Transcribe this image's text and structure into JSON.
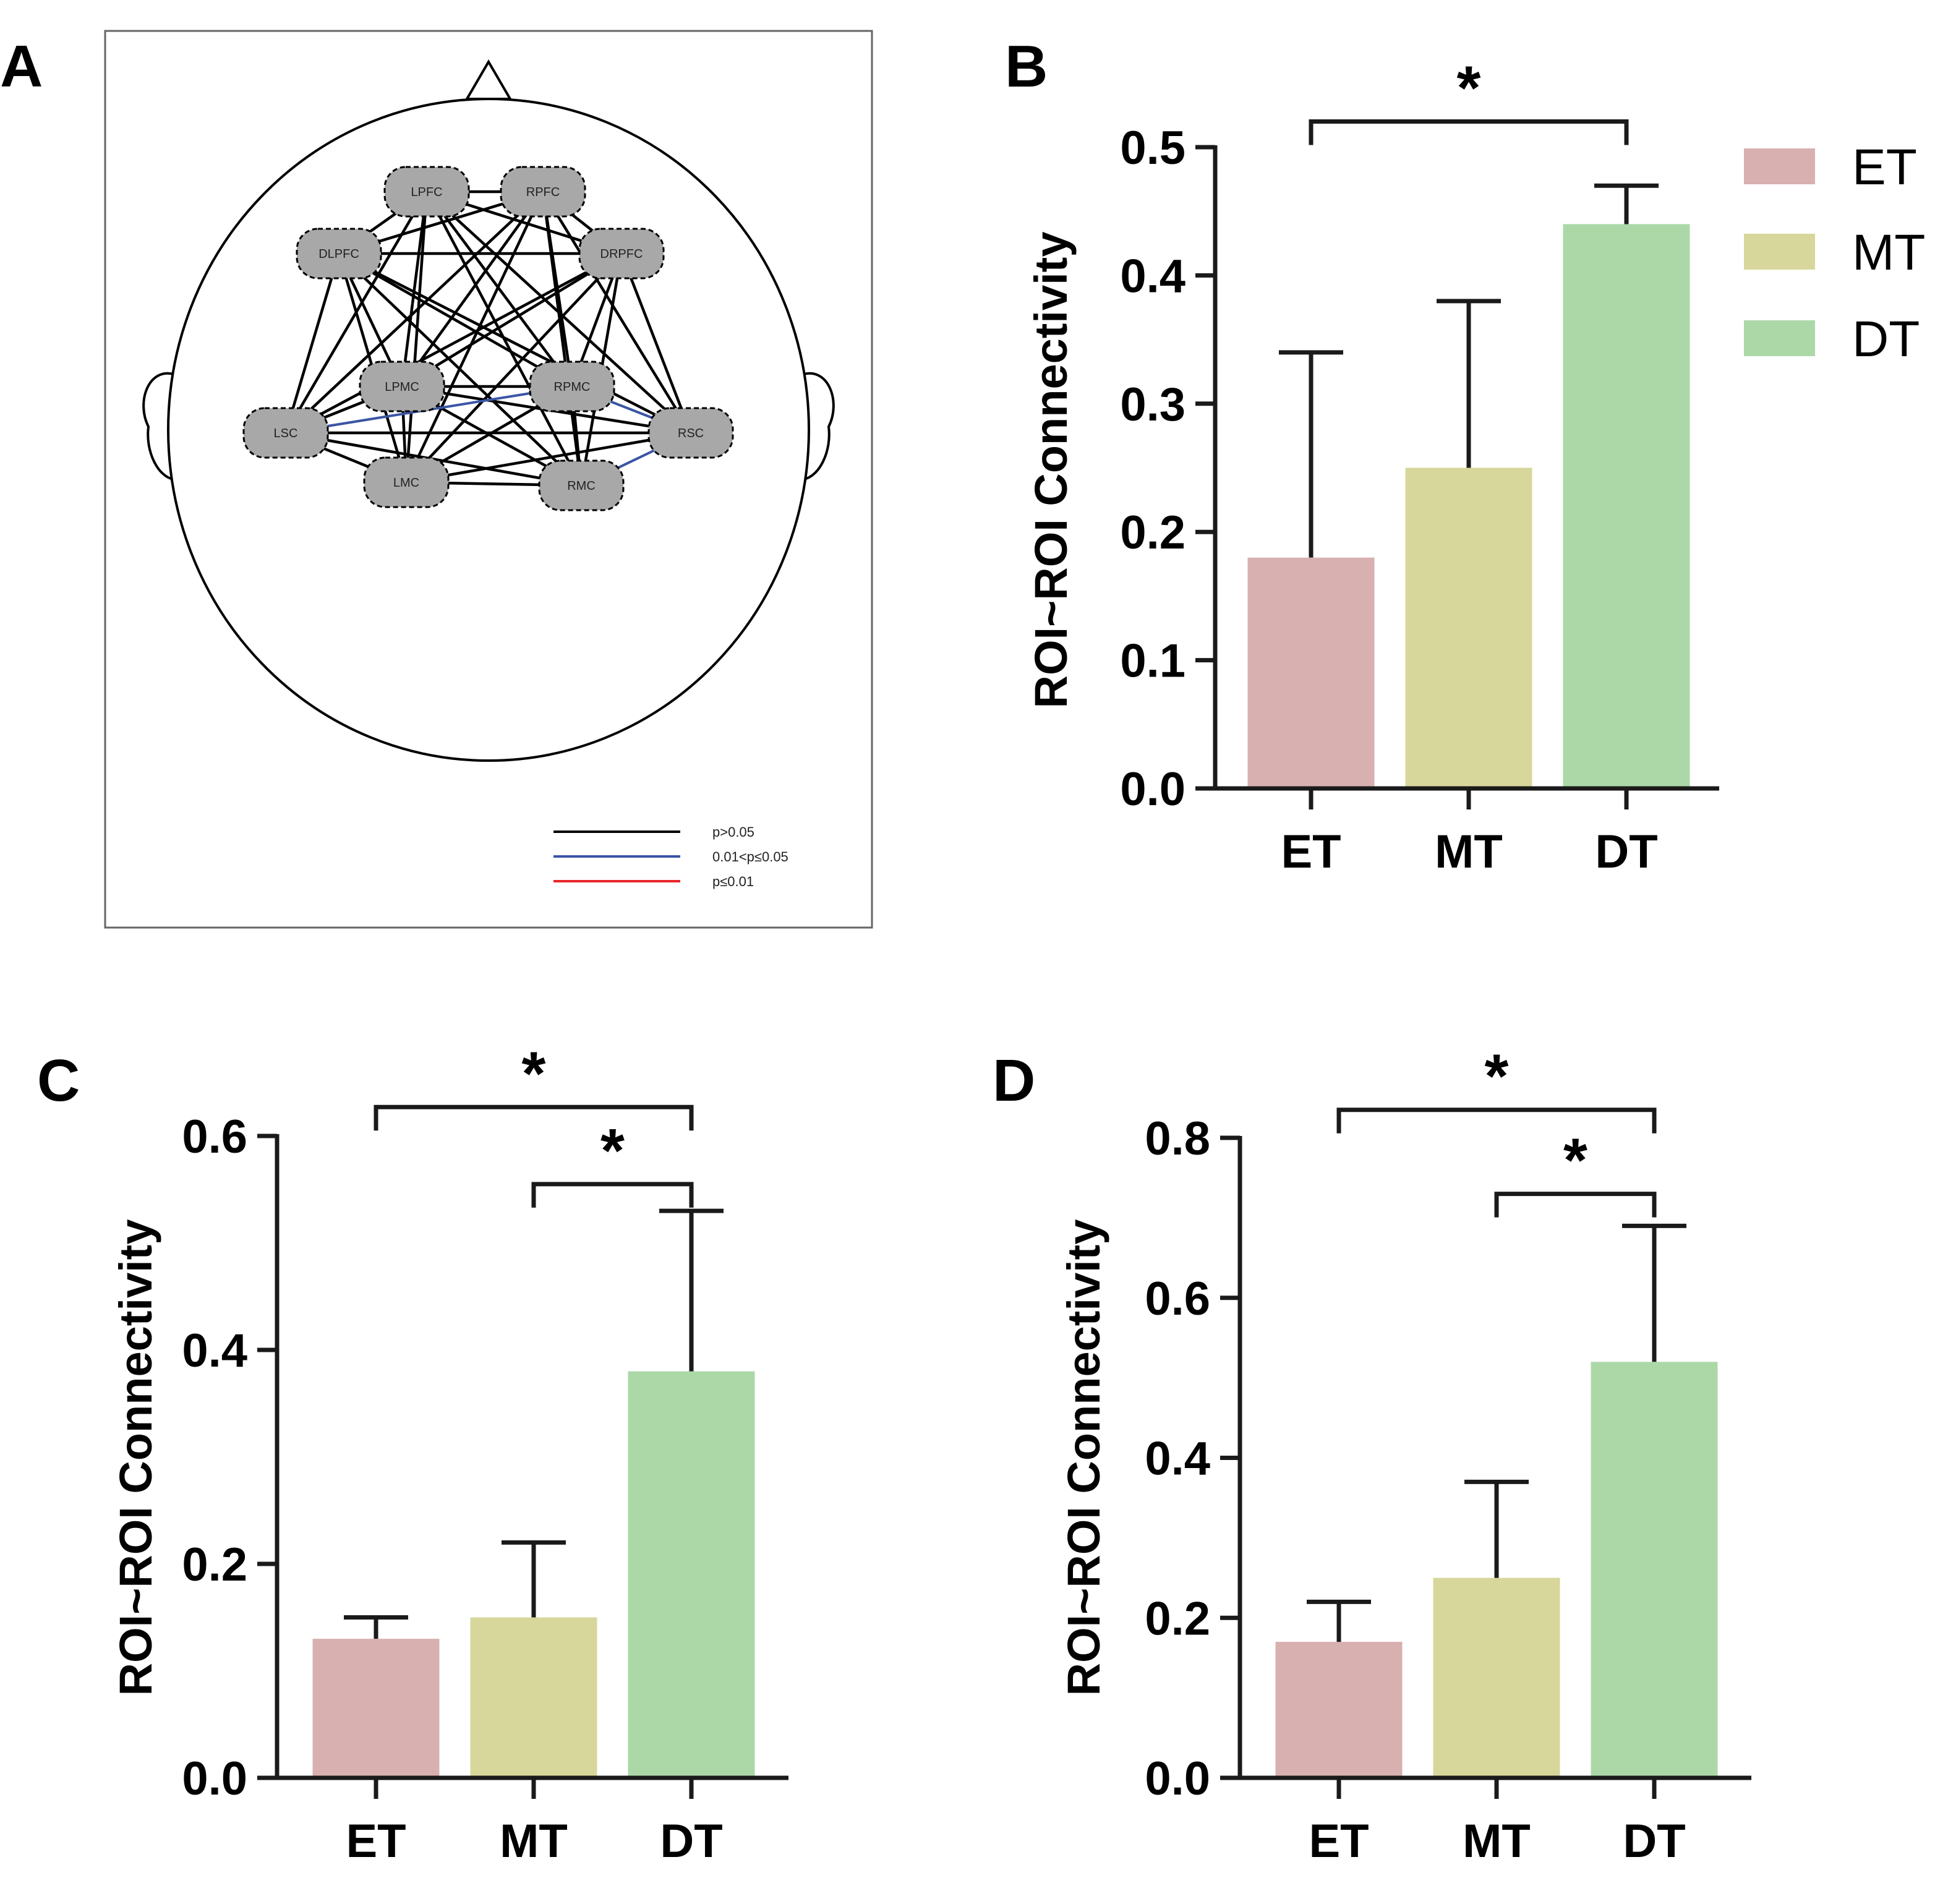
{
  "panels": {
    "a": "A",
    "b": "B",
    "c": "C",
    "d": "D"
  },
  "significance_marker": "*",
  "colors": {
    "ET": "#d8b0b0",
    "MT": "#d7d79b",
    "DT": "#acd8a8",
    "axis": "#1a1a1a",
    "edge_ns": "#000000",
    "edge_sig": "#3a55a4",
    "edge_highly_sig": "#e8262b",
    "node_fill": "#a8a8a8"
  },
  "network": {
    "nodes": [
      {
        "id": "LPFC",
        "label": "LPFC"
      },
      {
        "id": "RPFC",
        "label": "RPFC"
      },
      {
        "id": "DLPFC",
        "label": "DLPFC"
      },
      {
        "id": "DRPFC",
        "label": "DRPFC"
      },
      {
        "id": "LPMC",
        "label": "LPMC"
      },
      {
        "id": "RPMC",
        "label": "RPMC"
      },
      {
        "id": "LSC",
        "label": "LSC"
      },
      {
        "id": "RSC",
        "label": "RSC"
      },
      {
        "id": "LMC",
        "label": "LMC"
      },
      {
        "id": "RMC",
        "label": "RMC"
      }
    ],
    "significant_edges": [
      [
        "LSC",
        "RPMC"
      ],
      [
        "RPMC",
        "RSC"
      ],
      [
        "RSC",
        "RMC"
      ]
    ],
    "legend": [
      {
        "label": "p>0.05",
        "color": "#000000"
      },
      {
        "label": "0.01<p≤0.05",
        "color": "#3a55a4"
      },
      {
        "label": "p≤0.01",
        "color": "#e8262b"
      }
    ]
  },
  "legend_groups": [
    "ET",
    "MT",
    "DT"
  ],
  "chart_data": [
    {
      "panel": "B",
      "type": "bar",
      "categories": [
        "ET",
        "MT",
        "DT"
      ],
      "values": [
        0.18,
        0.25,
        0.44
      ],
      "errors": [
        0.16,
        0.13,
        0.03
      ],
      "ylabel": "ROI~ROI Connectivity",
      "ylim": [
        0,
        0.5
      ],
      "yticks": [
        "0.0",
        "0.1",
        "0.2",
        "0.3",
        "0.4",
        "0.5"
      ],
      "yticks_values": [
        0,
        0.1,
        0.2,
        0.3,
        0.4,
        0.5
      ],
      "significance": [
        {
          "from": 0,
          "to": 2,
          "level": 0.52,
          "label": "*"
        }
      ]
    },
    {
      "panel": "C",
      "type": "bar",
      "categories": [
        "ET",
        "MT",
        "DT"
      ],
      "values": [
        0.13,
        0.15,
        0.38
      ],
      "errors": [
        0.02,
        0.07,
        0.15
      ],
      "ylabel": "ROI~ROI Connectivity",
      "ylim": [
        0,
        0.6
      ],
      "yticks": [
        "0.0",
        "0.2",
        "0.4",
        "0.6"
      ],
      "yticks_values": [
        0,
        0.2,
        0.4,
        0.6
      ],
      "significance": [
        {
          "from": 0,
          "to": 2,
          "level": 0.627,
          "label": "*"
        },
        {
          "from": 1,
          "to": 2,
          "level": 0.555,
          "label": "*"
        }
      ]
    },
    {
      "panel": "D",
      "type": "bar",
      "categories": [
        "ET",
        "MT",
        "DT"
      ],
      "values": [
        0.17,
        0.25,
        0.52
      ],
      "errors": [
        0.05,
        0.12,
        0.17
      ],
      "ylabel": "ROI~ROI Connectivity",
      "ylim": [
        0,
        0.8
      ],
      "yticks": [
        "0.0",
        "0.2",
        "0.4",
        "0.6",
        "0.8"
      ],
      "yticks_values": [
        0,
        0.2,
        0.4,
        0.6,
        0.8
      ],
      "significance": [
        {
          "from": 0,
          "to": 2,
          "level": 0.835,
          "label": "*"
        },
        {
          "from": 1,
          "to": 2,
          "level": 0.73,
          "label": "*"
        }
      ]
    }
  ]
}
